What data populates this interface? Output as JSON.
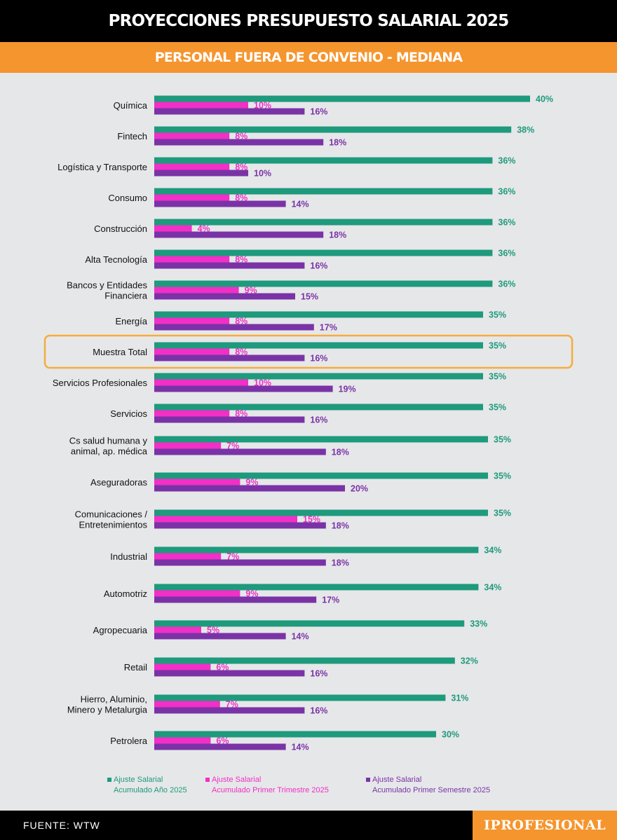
{
  "header": {
    "title": "PROYECCIONES PRESUPUESTO SALARIAL 2025",
    "subtitle": "PERSONAL FUERA DE CONVENIO - MEDIANA"
  },
  "colors": {
    "annual": "#1e9a7c",
    "quarter": "#f22fc6",
    "semester": "#7a33a6",
    "highlight": "#f5ad3a",
    "orange": "#f5952e"
  },
  "chart_data": {
    "type": "bar",
    "orientation": "horizontal",
    "categories": [
      "Química",
      "Fintech",
      "Logística y Transporte",
      "Consumo",
      "Construcción",
      "Alta Tecnología",
      "Bancos y Entidades\nFinanciera",
      "Energía",
      "Muestra Total",
      "Servicios Profesionales",
      "Servicios",
      "Cs salud humana y\nanimal, ap. médica",
      "Aseguradoras",
      "Comunicaciones /\nEntretenimientos",
      "Industrial",
      "Automotriz",
      "Agropecuaria",
      "Retail",
      "Hierro, Aluminio,\nMinero y Metalurgia",
      "Petrolera"
    ],
    "series": [
      {
        "name": "Ajuste Salarial Acumulado Año 2025",
        "values": [
          40,
          38,
          36,
          36,
          36,
          36,
          36,
          35,
          35,
          35,
          35,
          35,
          35,
          35,
          34,
          34,
          33,
          32,
          31,
          30
        ],
        "labels": [
          "40%",
          "38%",
          "36%",
          "36%",
          "36%",
          "36%",
          "36%",
          "35%",
          "35%",
          "35%",
          "35%",
          "35%",
          "35%",
          "35%",
          "34%",
          "34%",
          "33%",
          "32%",
          "31%",
          "30%"
        ]
      },
      {
        "name": "Ajuste Salarial Acumulado Primer Trimestre 2025",
        "values": [
          10,
          8,
          8,
          8,
          4,
          8,
          9,
          8,
          8,
          10,
          8,
          7,
          9,
          15,
          7,
          9,
          5,
          6,
          7,
          6
        ],
        "labels": [
          "10%",
          "8%",
          "8%",
          "8%",
          "4%",
          "8%",
          "9%",
          "8%",
          "8%",
          "10%",
          "8%",
          "7%",
          "9%",
          "15%",
          "7%",
          "9%",
          "5%",
          "6%",
          "7%",
          "6%"
        ]
      },
      {
        "name": "Ajuste Salarial Acumulado Primer Semestre 2025",
        "values": [
          16,
          18,
          10,
          14,
          18,
          16,
          15,
          17,
          16,
          19,
          16,
          18,
          20,
          18,
          18,
          17,
          14,
          16,
          16,
          14
        ],
        "labels": [
          "16%",
          "18%",
          "10%",
          "14%",
          "18%",
          "16%",
          "15%",
          "17%",
          "16%",
          "19%",
          "16%",
          "18%",
          "20%",
          "18%",
          "18%",
          "17%",
          "14%",
          "16%",
          "16%",
          "14%"
        ]
      }
    ],
    "highlighted_category": "Muestra Total"
  },
  "legend": [
    {
      "line1": "Ajuste Salarial",
      "line2": "Acumulado Año 2025"
    },
    {
      "line1": "Ajuste Salarial",
      "line2": "Acumulado Primer Trimestre 2025"
    },
    {
      "line1": "Ajuste Salarial",
      "line2": "Acumulado Primer Semestre 2025"
    }
  ],
  "footer": {
    "source": "FUENTE: WTW",
    "brand": "IPROFESIONAL"
  }
}
